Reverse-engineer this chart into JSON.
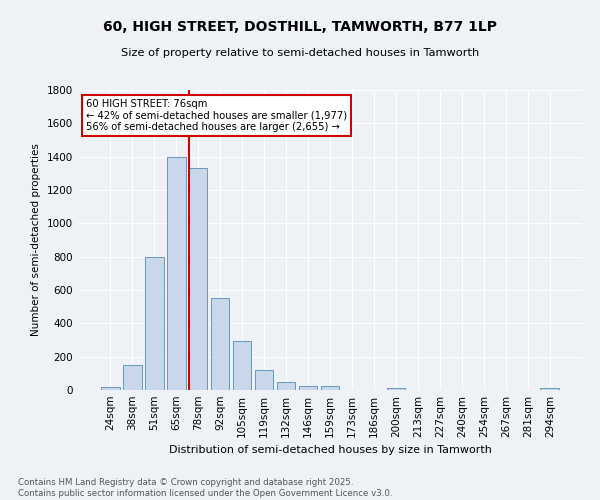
{
  "title1": "60, HIGH STREET, DOSTHILL, TAMWORTH, B77 1LP",
  "title2": "Size of property relative to semi-detached houses in Tamworth",
  "xlabel": "Distribution of semi-detached houses by size in Tamworth",
  "ylabel": "Number of semi-detached properties",
  "bar_labels": [
    "24sqm",
    "38sqm",
    "51sqm",
    "65sqm",
    "78sqm",
    "92sqm",
    "105sqm",
    "119sqm",
    "132sqm",
    "146sqm",
    "159sqm",
    "173sqm",
    "186sqm",
    "200sqm",
    "213sqm",
    "227sqm",
    "240sqm",
    "254sqm",
    "267sqm",
    "281sqm",
    "294sqm"
  ],
  "bar_values": [
    20,
    150,
    800,
    1400,
    1330,
    550,
    295,
    120,
    50,
    25,
    25,
    0,
    0,
    15,
    0,
    0,
    0,
    0,
    0,
    0,
    15
  ],
  "bar_color": "#c8d8ea",
  "bar_edge_color": "#6699bb",
  "redline_index": 4,
  "annotation_title": "60 HIGH STREET: 76sqm",
  "annotation_line1": "← 42% of semi-detached houses are smaller (1,977)",
  "annotation_line2": "56% of semi-detached houses are larger (2,655) →",
  "redline_color": "#cc0000",
  "annotation_box_edge": "#cc0000",
  "ylim": [
    0,
    1800
  ],
  "yticks": [
    0,
    200,
    400,
    600,
    800,
    1000,
    1200,
    1400,
    1600,
    1800
  ],
  "footer1": "Contains HM Land Registry data © Crown copyright and database right 2025.",
  "footer2": "Contains public sector information licensed under the Open Government Licence v3.0.",
  "bg_color": "#eef2f7",
  "plot_bg_color": "#eef2f7",
  "grid_color": "#ffffff"
}
